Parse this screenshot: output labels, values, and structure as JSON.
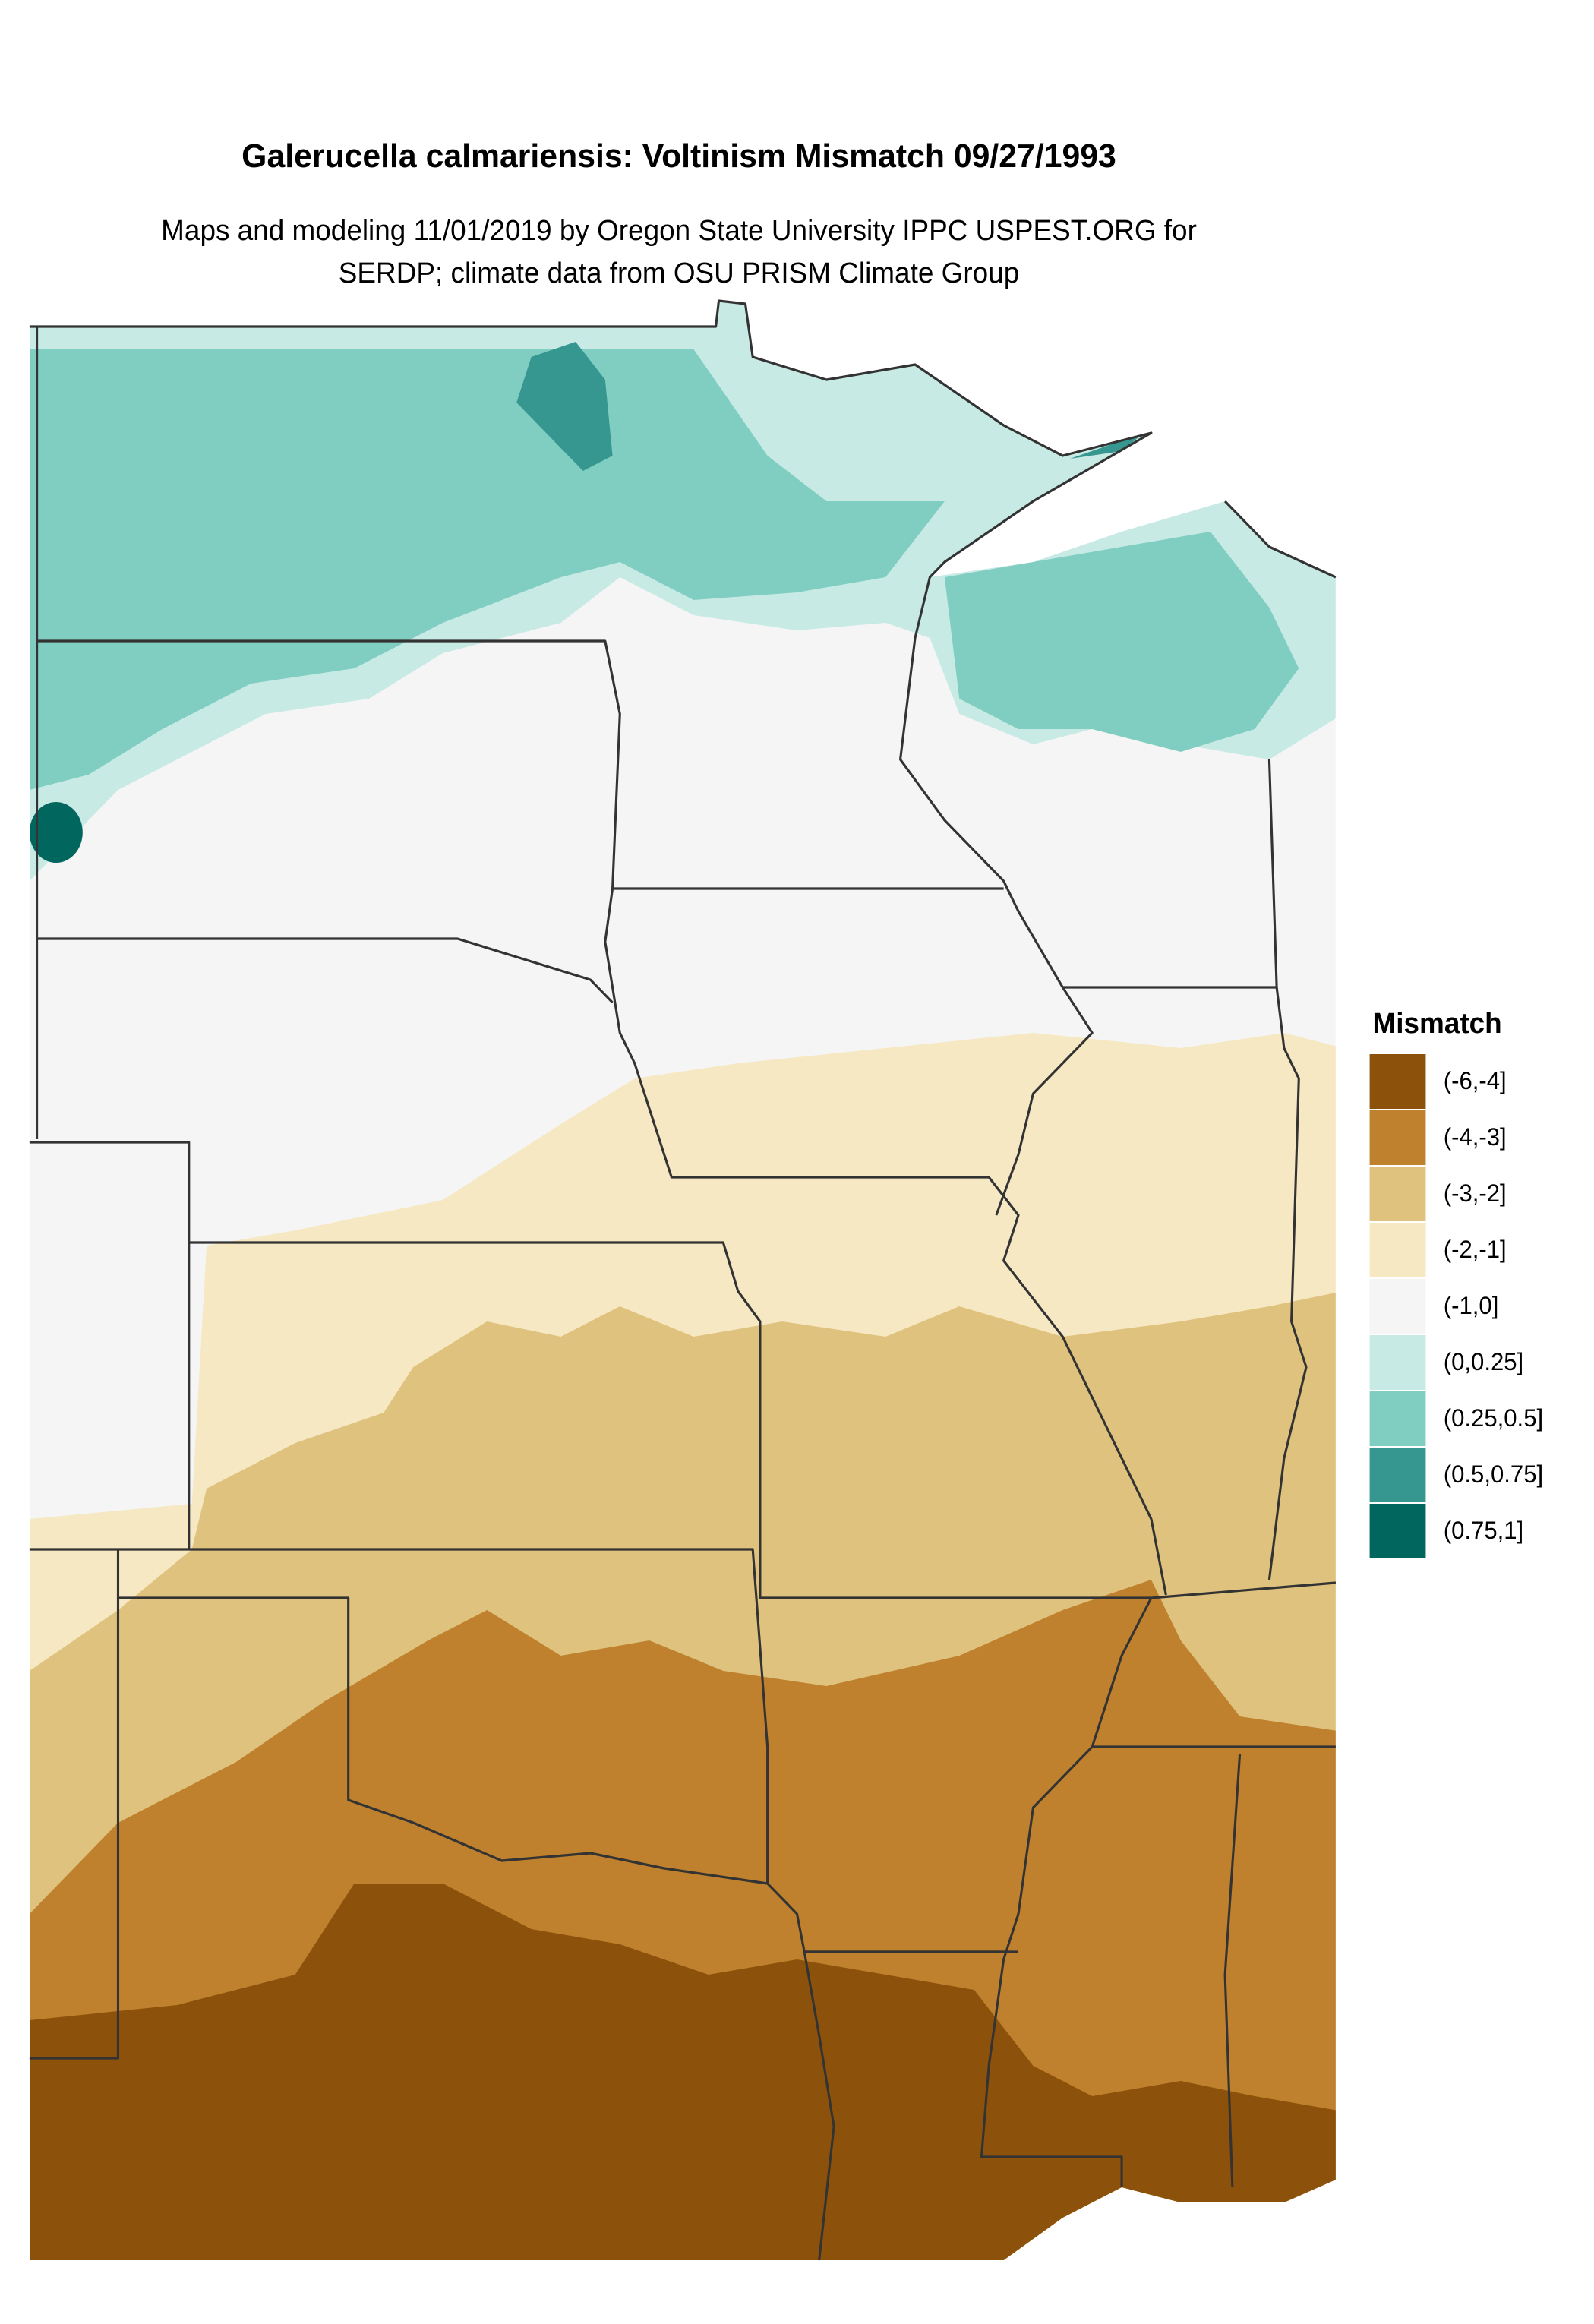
{
  "title": "Galerucella calmariensis: Voltinism Mismatch 09/27/1993",
  "subtitle": [
    "Maps and modeling 11/01/2019 by Oregon State University IPPC USPEST.ORG for",
    "SERDP; climate data from OSU PRISM Climate Group"
  ],
  "legend": {
    "title": "Mismatch",
    "items": [
      {
        "label": "(-6,-4]",
        "color": "#8c510a"
      },
      {
        "label": "(-4,-3]",
        "color": "#bf812d"
      },
      {
        "label": "(-3,-2]",
        "color": "#dfc27d"
      },
      {
        "label": "(-2,-1]",
        "color": "#f6e8c3"
      },
      {
        "label": "(-1,0]",
        "color": "#f5f5f5"
      },
      {
        "label": "(0,0.25]",
        "color": "#c7eae5"
      },
      {
        "label": "(0.25,0.5]",
        "color": "#80cdc1"
      },
      {
        "label": "(0.5,0.75]",
        "color": "#35978f"
      },
      {
        "label": "(0.75,1]",
        "color": "#01665e"
      }
    ]
  }
}
